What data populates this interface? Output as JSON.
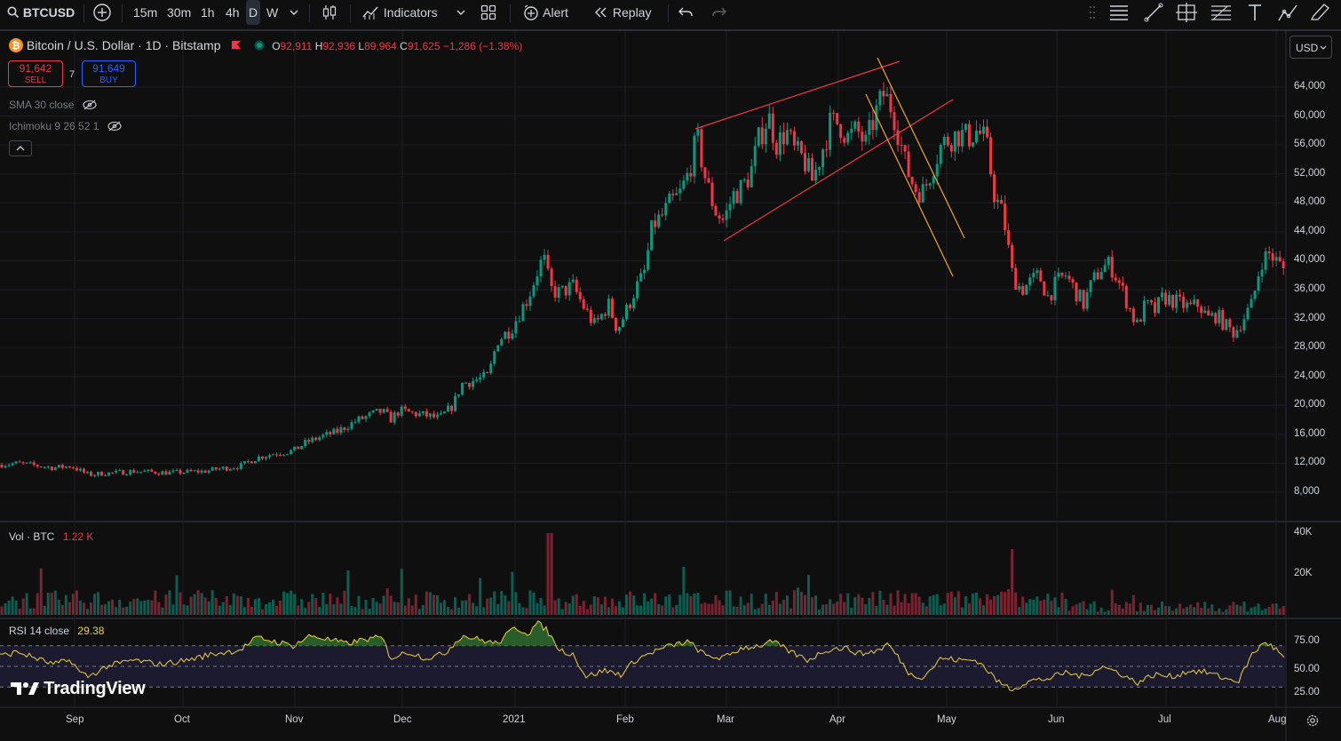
{
  "toolbar": {
    "symbol": "BTCUSD",
    "intervals": [
      "15m",
      "30m",
      "1h",
      "4h",
      "D",
      "W"
    ],
    "active_interval": "D",
    "indicators_label": "Indicators",
    "alert_label": "Alert",
    "replay_label": "Replay"
  },
  "legend": {
    "title": "Bitcoin / U.S. Dollar · 1D · Bitstamp",
    "o_key": "O",
    "o_val": "92,911",
    "h_key": "H",
    "h_val": "92,936",
    "l_key": "L",
    "l_val": "89,964",
    "c_key": "C",
    "c_val": "91,625",
    "change": "−1,286 (−1.38%)"
  },
  "trade": {
    "sell_price": "91,642",
    "sell_label": "SELL",
    "spread": "7",
    "buy_price": "91,649",
    "buy_label": "BUY"
  },
  "indicators": {
    "sma": "SMA 30 close",
    "ichimoku": "Ichimoku 9 26 52 1",
    "vol_label": "Vol · BTC",
    "vol_value": "1.22 K",
    "rsi_label": "RSI 14 close",
    "rsi_value": "29.38"
  },
  "currency": "USD",
  "watermark": "TradingView",
  "colors": {
    "up": "#089981",
    "down": "#f23645",
    "rsi": "#f0d23c",
    "channel": "#f23645",
    "fork": "#f5a623"
  },
  "chart_data": {
    "type": "candlestick",
    "price_axis": [
      "64,000",
      "60,000",
      "56,000",
      "52,000",
      "48,000",
      "44,000",
      "40,000",
      "36,000",
      "32,000",
      "28,000",
      "24,000",
      "20,000",
      "16,000",
      "12,000",
      "8,000"
    ],
    "price_ylim": [
      4000,
      68000
    ],
    "volume_axis": [
      "40K",
      "20K"
    ],
    "rsi_axis": [
      "75.00",
      "50.00",
      "25.00"
    ],
    "rsi_levels": [
      70,
      50,
      30
    ],
    "time_axis": [
      "Sep",
      "Oct",
      "Nov",
      "Dec",
      "2021",
      "Feb",
      "Mar",
      "Apr",
      "May",
      "Jun",
      "Jul",
      "Aug"
    ],
    "close_path": [
      [
        0,
        11800
      ],
      [
        20,
        12000
      ],
      [
        40,
        11700
      ],
      [
        60,
        11400
      ],
      [
        80,
        11600
      ],
      [
        90,
        11000
      ],
      [
        100,
        10400
      ],
      [
        115,
        10600
      ],
      [
        130,
        10700
      ],
      [
        150,
        10900
      ],
      [
        170,
        10800
      ],
      [
        190,
        10700
      ],
      [
        210,
        10800
      ],
      [
        230,
        10900
      ],
      [
        250,
        11300
      ],
      [
        270,
        11600
      ],
      [
        290,
        12800
      ],
      [
        310,
        13400
      ],
      [
        330,
        13700
      ],
      [
        345,
        14900
      ],
      [
        360,
        15600
      ],
      [
        380,
        16400
      ],
      [
        400,
        17800
      ],
      [
        420,
        18800
      ],
      [
        430,
        19200
      ],
      [
        440,
        18100
      ],
      [
        450,
        19300
      ],
      [
        465,
        18900
      ],
      [
        480,
        18600
      ],
      [
        495,
        18200
      ],
      [
        510,
        20000
      ],
      [
        520,
        23000
      ],
      [
        535,
        23500
      ],
      [
        550,
        24000
      ],
      [
        560,
        29000
      ],
      [
        575,
        30500
      ],
      [
        585,
        32800
      ],
      [
        595,
        35000
      ],
      [
        605,
        38500
      ],
      [
        612,
        40500
      ],
      [
        620,
        36000
      ],
      [
        630,
        35500
      ],
      [
        645,
        36500
      ],
      [
        660,
        33000
      ],
      [
        670,
        31000
      ],
      [
        685,
        34000
      ],
      [
        695,
        30500
      ],
      [
        705,
        33000
      ],
      [
        715,
        36000
      ],
      [
        725,
        38000
      ],
      [
        735,
        45000
      ],
      [
        745,
        46000
      ],
      [
        755,
        48000
      ],
      [
        765,
        49000
      ],
      [
        775,
        52000
      ],
      [
        785,
        57000
      ],
      [
        795,
        51000
      ],
      [
        805,
        47000
      ],
      [
        815,
        45500
      ],
      [
        825,
        49000
      ],
      [
        835,
        50000
      ],
      [
        845,
        52000
      ],
      [
        855,
        57000
      ],
      [
        865,
        60000
      ],
      [
        875,
        56000
      ],
      [
        885,
        58000
      ],
      [
        895,
        55000
      ],
      [
        905,
        54000
      ],
      [
        915,
        51000
      ],
      [
        925,
        55000
      ],
      [
        935,
        59000
      ],
      [
        945,
        59000
      ],
      [
        955,
        57000
      ],
      [
        965,
        58000
      ],
      [
        975,
        56000
      ],
      [
        985,
        60000
      ],
      [
        995,
        63000
      ],
      [
        1005,
        61000
      ],
      [
        1012,
        57500
      ],
      [
        1020,
        53000
      ],
      [
        1030,
        50000
      ],
      [
        1040,
        49500
      ],
      [
        1050,
        53000
      ],
      [
        1060,
        56000
      ],
      [
        1070,
        57000
      ],
      [
        1080,
        57500
      ],
      [
        1090,
        57000
      ],
      [
        1100,
        58000
      ],
      [
        1110,
        56500
      ],
      [
        1120,
        49000
      ],
      [
        1130,
        46000
      ],
      [
        1140,
        38000
      ],
      [
        1150,
        36000
      ],
      [
        1160,
        37000
      ],
      [
        1170,
        38000
      ],
      [
        1180,
        35000
      ],
      [
        1190,
        37000
      ],
      [
        1200,
        38000
      ],
      [
        1210,
        36000
      ],
      [
        1220,
        34000
      ],
      [
        1230,
        37000
      ],
      [
        1240,
        39000
      ],
      [
        1250,
        39500
      ],
      [
        1260,
        37000
      ],
      [
        1270,
        34000
      ],
      [
        1280,
        31000
      ],
      [
        1290,
        34000
      ],
      [
        1300,
        33000
      ],
      [
        1310,
        35000
      ],
      [
        1320,
        34500
      ],
      [
        1330,
        34000
      ],
      [
        1340,
        33500
      ],
      [
        1350,
        34000
      ],
      [
        1360,
        32000
      ],
      [
        1370,
        32500
      ],
      [
        1380,
        31000
      ],
      [
        1390,
        30000
      ],
      [
        1400,
        32000
      ],
      [
        1410,
        34000
      ],
      [
        1420,
        40000
      ],
      [
        1430,
        41000
      ],
      [
        1440,
        39500
      ],
      [
        1448,
        38500
      ]
    ],
    "rsi_path": [
      [
        0,
        60
      ],
      [
        20,
        64
      ],
      [
        40,
        58
      ],
      [
        60,
        52
      ],
      [
        80,
        56
      ],
      [
        90,
        44
      ],
      [
        100,
        40
      ],
      [
        120,
        50
      ],
      [
        150,
        56
      ],
      [
        180,
        52
      ],
      [
        210,
        56
      ],
      [
        240,
        62
      ],
      [
        270,
        66
      ],
      [
        290,
        78
      ],
      [
        310,
        74
      ],
      [
        330,
        70
      ],
      [
        350,
        80
      ],
      [
        370,
        76
      ],
      [
        390,
        72
      ],
      [
        410,
        76
      ],
      [
        430,
        78
      ],
      [
        440,
        58
      ],
      [
        460,
        64
      ],
      [
        480,
        58
      ],
      [
        500,
        62
      ],
      [
        520,
        80
      ],
      [
        540,
        76
      ],
      [
        560,
        72
      ],
      [
        580,
        88
      ],
      [
        595,
        82
      ],
      [
        605,
        92
      ],
      [
        615,
        86
      ],
      [
        630,
        66
      ],
      [
        645,
        62
      ],
      [
        660,
        40
      ],
      [
        680,
        46
      ],
      [
        700,
        42
      ],
      [
        715,
        56
      ],
      [
        735,
        64
      ],
      [
        755,
        70
      ],
      [
        775,
        74
      ],
      [
        795,
        60
      ],
      [
        815,
        58
      ],
      [
        835,
        68
      ],
      [
        855,
        70
      ],
      [
        870,
        74
      ],
      [
        890,
        64
      ],
      [
        910,
        56
      ],
      [
        930,
        66
      ],
      [
        950,
        68
      ],
      [
        970,
        62
      ],
      [
        990,
        66
      ],
      [
        1000,
        72
      ],
      [
        1012,
        58
      ],
      [
        1025,
        42
      ],
      [
        1040,
        40
      ],
      [
        1060,
        58
      ],
      [
        1080,
        56
      ],
      [
        1100,
        56
      ],
      [
        1110,
        48
      ],
      [
        1125,
        34
      ],
      [
        1140,
        28
      ],
      [
        1160,
        36
      ],
      [
        1180,
        38
      ],
      [
        1200,
        44
      ],
      [
        1220,
        40
      ],
      [
        1240,
        50
      ],
      [
        1260,
        44
      ],
      [
        1280,
        34
      ],
      [
        1300,
        42
      ],
      [
        1320,
        40
      ],
      [
        1340,
        46
      ],
      [
        1360,
        44
      ],
      [
        1380,
        38
      ],
      [
        1395,
        36
      ],
      [
        1410,
        62
      ],
      [
        1425,
        74
      ],
      [
        1440,
        64
      ],
      [
        1448,
        55
      ]
    ]
  }
}
